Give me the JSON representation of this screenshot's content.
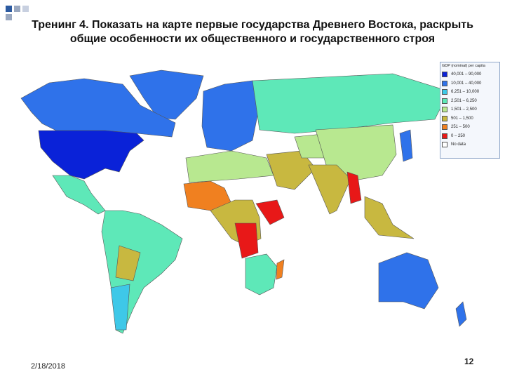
{
  "title": "Тренинг 4. Показать на карте первые государства Древнего Востока, раскрыть общие особенности их общественного и государственного строя",
  "legend": {
    "title": "GDP (nominal) per capita",
    "items": [
      {
        "label": "40,001 – 90,000",
        "color": "#0a22d8"
      },
      {
        "label": "10,001 – 40,000",
        "color": "#2f72ea"
      },
      {
        "label": "6,251 – 10,000",
        "color": "#3ec8e8"
      },
      {
        "label": "2,501 – 6,250",
        "color": "#5ee8b8"
      },
      {
        "label": "1,501 – 2,500",
        "color": "#b8e890"
      },
      {
        "label": "501 – 1,500",
        "color": "#c8b840"
      },
      {
        "label": "251 – 500",
        "color": "#f08020"
      },
      {
        "label": "0 – 250",
        "color": "#e81818"
      },
      {
        "label": "No data",
        "color": "#ffffff"
      }
    ]
  },
  "footer": {
    "date": "2/18/2018",
    "page": "12"
  }
}
